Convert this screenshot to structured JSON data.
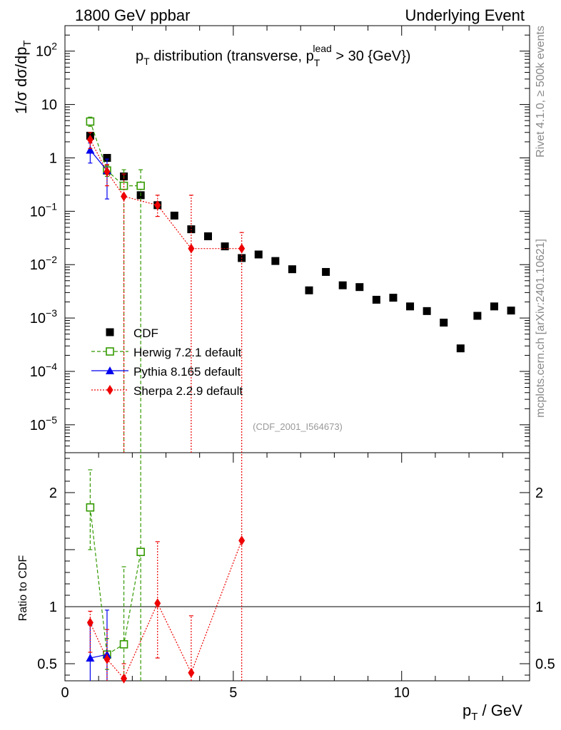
{
  "header": {
    "left": "1800 GeV ppbar",
    "right": "Underlying Event"
  },
  "side_labels": {
    "rivet": "Rivet 4.1.0, ≥ 500k events",
    "mcplots": "mcplots.cern.ch [arXiv:2401.10621]"
  },
  "chart_data": {
    "type": "scatter",
    "title": "p_T distribution (transverse, p_T^lead > 30 {GeV})",
    "title_parts": {
      "pre": "p",
      "pre_sub": "T",
      "mid": " distribution (transverse, p",
      "sup": "lead",
      "sub": "T",
      "post": " > 30 {GeV})"
    },
    "analysis_id": "(CDF_2001_I564673)",
    "xlabel": {
      "main": "p",
      "sub": "T",
      "rest": " / GeV"
    },
    "ylabel": {
      "prefix": "1/σ  dσ/dp",
      "sub": "T"
    },
    "ratio_ylabel": "Ratio to CDF",
    "xlim": [
      0,
      13.8
    ],
    "ylim_log": [
      3e-06,
      300
    ],
    "ratio_ylim": [
      0.35,
      2.35
    ],
    "x_ticks": [
      0,
      5,
      10
    ],
    "y_major_exponents": [
      -5,
      -4,
      -3,
      -2,
      -1,
      0,
      1,
      2
    ],
    "y_tick_labels": [
      {
        "exp": -5,
        "base": "10",
        "sup": "−5"
      },
      {
        "exp": -4,
        "base": "10",
        "sup": "−4"
      },
      {
        "exp": -3,
        "base": "10",
        "sup": "−3"
      },
      {
        "exp": -2,
        "base": "10",
        "sup": "−2"
      },
      {
        "exp": -1,
        "base": "10",
        "sup": "−1"
      },
      {
        "exp": 0,
        "base": "1",
        "sup": ""
      },
      {
        "exp": 1,
        "base": "10",
        "sup": ""
      },
      {
        "exp": 2,
        "base": "10",
        "sup": "2"
      }
    ],
    "ratio_ticks": [
      0.5,
      1,
      2
    ],
    "legend": [
      {
        "name": "CDF",
        "color": "#000000",
        "marker": "square-filled",
        "line": "none"
      },
      {
        "name": "Herwig 7.2.1 default",
        "color": "#339900",
        "marker": "square-open",
        "line": "dashed"
      },
      {
        "name": "Pythia 8.165 default",
        "color": "#0000ee",
        "marker": "triangle",
        "line": "solid"
      },
      {
        "name": "Sherpa 2.2.9 default",
        "color": "#ee0000",
        "marker": "diamond",
        "line": "dotted"
      }
    ],
    "series": [
      {
        "name": "CDF",
        "color": "#000000",
        "x": [
          0.75,
          1.25,
          1.75,
          2.25,
          2.75,
          3.25,
          3.75,
          4.25,
          4.75,
          5.25,
          5.75,
          6.25,
          6.75,
          7.25,
          7.75,
          8.25,
          8.75,
          9.25,
          9.75,
          10.25,
          10.75,
          11.25,
          11.75,
          12.25,
          12.75,
          13.25
        ],
        "y": [
          2.6,
          1.0,
          0.45,
          0.2,
          0.13,
          0.083,
          0.046,
          0.034,
          0.022,
          0.0133,
          0.0155,
          0.0117,
          0.0082,
          0.0033,
          0.0073,
          0.0041,
          0.0038,
          0.0022,
          0.0024,
          0.00165,
          0.00135,
          0.00082,
          0.00027,
          0.0011,
          0.00165,
          0.00138
        ]
      },
      {
        "name": "Herwig 7.2.1 default",
        "color": "#339900",
        "x": [
          0.75,
          1.25,
          1.75,
          2.25
        ],
        "y": [
          4.8,
          0.58,
          0.3,
          0.3
        ],
        "err_low": [
          3.9,
          0.45,
          1e-09,
          1e-09
        ],
        "err_high": [
          5.8,
          0.72,
          0.6,
          0.6
        ],
        "ratio": [
          1.87,
          0.58,
          0.67,
          1.48
        ],
        "ratio_err_low": [
          1.5,
          0.45,
          0.3,
          0.3
        ],
        "ratio_err_high": [
          2.2,
          0.72,
          1.35,
          2.4
        ]
      },
      {
        "name": "Pythia 8.165 default",
        "color": "#0000ee",
        "x": [
          0.75,
          1.25
        ],
        "y": [
          1.4,
          0.58
        ],
        "err_low": [
          0.8,
          0.17
        ],
        "err_high": [
          1.9,
          0.95
        ],
        "ratio": [
          0.55,
          0.58
        ],
        "ratio_err_low": [
          0.3,
          0.3
        ],
        "ratio_err_high": [
          0.84,
          0.97
        ]
      },
      {
        "name": "Sherpa 2.2.9 default",
        "color": "#ee0000",
        "x": [
          0.75,
          1.25,
          1.75,
          2.75,
          3.75,
          5.25
        ],
        "y": [
          2.2,
          0.55,
          0.19,
          0.13,
          0.02,
          0.02
        ],
        "err_low": [
          1.5,
          0.3,
          1e-09,
          0.08,
          1e-09,
          1e-09
        ],
        "err_high": [
          3.0,
          0.75,
          0.5,
          0.2,
          0.2,
          0.04
        ],
        "ratio": [
          0.86,
          0.54,
          0.37,
          1.03,
          0.42,
          1.58
        ],
        "ratio_err_low": [
          0.6,
          0.3,
          0.3,
          0.55,
          0.3,
          0.3
        ],
        "ratio_err_high": [
          0.96,
          0.8,
          0.5,
          1.57,
          0.92,
          2.4
        ]
      }
    ]
  }
}
